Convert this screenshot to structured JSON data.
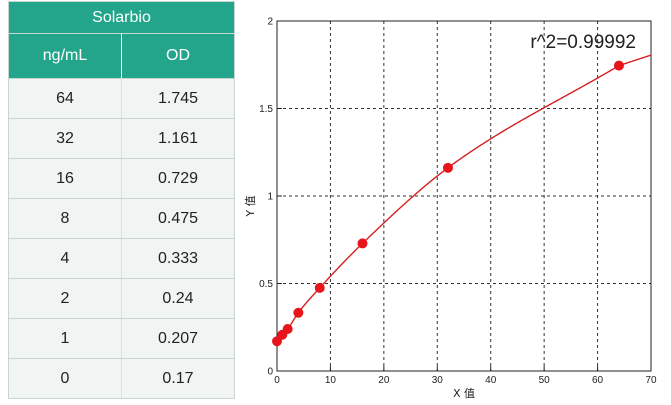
{
  "table": {
    "brand": "Solarbio",
    "col1_header": "ng/mL",
    "col2_header": "OD",
    "rows": [
      {
        "conc": "64",
        "od": "1.745"
      },
      {
        "conc": "32",
        "od": "1.161"
      },
      {
        "conc": "16",
        "od": "0.729"
      },
      {
        "conc": "8",
        "od": "0.475"
      },
      {
        "conc": "4",
        "od": "0.333"
      },
      {
        "conc": "2",
        "od": "0.24"
      },
      {
        "conc": "1",
        "od": "0.207"
      },
      {
        "conc": "0",
        "od": "0.17"
      }
    ]
  },
  "chart_data": {
    "type": "scatter",
    "xlabel": "X 值",
    "ylabel": "Y 值",
    "xlim": [
      0,
      70
    ],
    "ylim": [
      0,
      2
    ],
    "x_ticks": [
      0,
      10,
      20,
      30,
      40,
      50,
      60,
      70
    ],
    "y_ticks": [
      0,
      0.5,
      1,
      1.5,
      2
    ],
    "grid": true,
    "annotation": "r^2=0.99992",
    "points": [
      {
        "x": 0,
        "y": 0.17
      },
      {
        "x": 1,
        "y": 0.207
      },
      {
        "x": 2,
        "y": 0.24
      },
      {
        "x": 4,
        "y": 0.333
      },
      {
        "x": 8,
        "y": 0.475
      },
      {
        "x": 16,
        "y": 0.729
      },
      {
        "x": 32,
        "y": 1.161
      },
      {
        "x": 64,
        "y": 1.745
      }
    ],
    "marker_color": "#e8141b",
    "fit_color": "#d42020"
  }
}
